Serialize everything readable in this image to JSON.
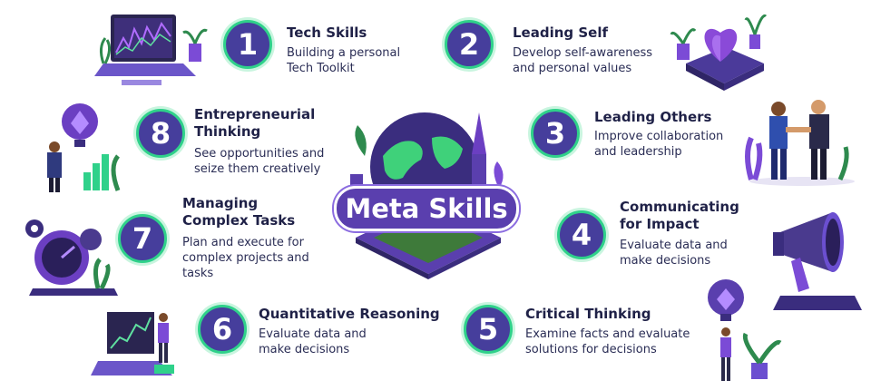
{
  "center": {
    "title": "Meta Skills"
  },
  "skills": [
    {
      "number": "1",
      "title": "Tech Skills",
      "description": "Building a personal Tech Toolkit"
    },
    {
      "number": "2",
      "title": "Leading Self",
      "description": "Develop self-awareness and personal values"
    },
    {
      "number": "3",
      "title": "Leading Others",
      "description": "Improve collaboration and leadership"
    },
    {
      "number": "4",
      "title": "Communicating for Impact",
      "description": "Evaluate data and make decisions"
    },
    {
      "number": "5",
      "title": "Critical Thinking",
      "description": "Examine facts and evaluate solutions for decisions"
    },
    {
      "number": "6",
      "title": "Quantitative Reasoning",
      "description": "Evaluate data and make decisions"
    },
    {
      "number": "7",
      "title": "Managing Complex Tasks",
      "description": "Plan and execute for complex projects and tasks"
    },
    {
      "number": "8",
      "title": "Entrepreneurial Thinking",
      "description": "See opportunities and seize them creatively"
    }
  ],
  "colors": {
    "primary": "#463e9c",
    "accent": "#2fd18a",
    "purple": "#6b3fc2",
    "text": "#1f2147"
  }
}
